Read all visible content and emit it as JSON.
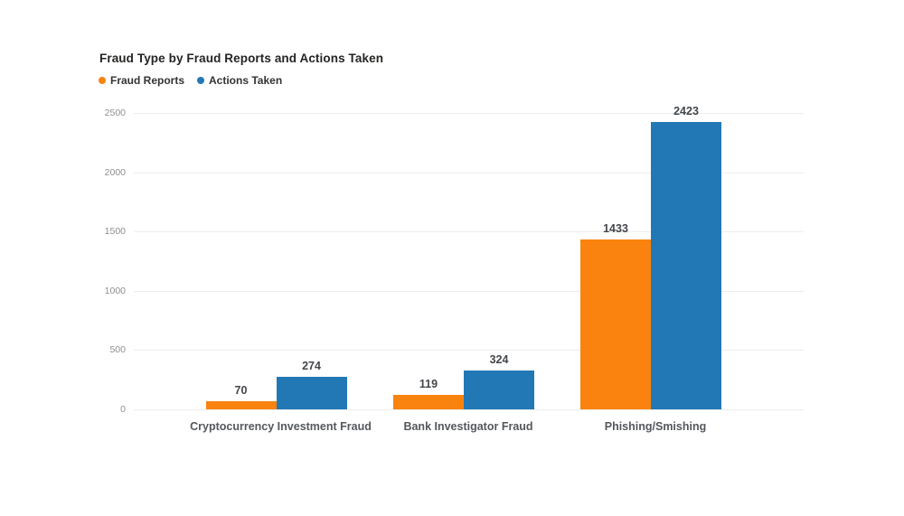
{
  "chart": {
    "title": "Fraud Type by Fraud Reports and Actions Taken"
  },
  "chart_data": {
    "type": "bar",
    "title": "Fraud Type by Fraud Reports and Actions Taken",
    "categories": [
      "Cryptocurrency Investment Fraud",
      "Bank Investigator Fraud",
      "Phishing/Smishing"
    ],
    "series": [
      {
        "name": "Fraud Reports",
        "color": "#f9830e",
        "values": [
          70,
          119,
          1433
        ]
      },
      {
        "name": "Actions Taken",
        "color": "#2278b5",
        "values": [
          274,
          324,
          2423
        ]
      }
    ],
    "xlabel": "",
    "ylabel": "",
    "ylim": [
      0,
      2500
    ],
    "yticks": [
      0,
      500,
      1000,
      1500,
      2000,
      2500
    ],
    "grid": true,
    "legend_position": "top-left",
    "data_labels": true,
    "colors": {
      "title_text": "#252423",
      "legend_text": "#333333",
      "value_label_text": "#43474b",
      "category_label_text": "#54585d",
      "axis_tick_text": "#8f8f8f",
      "gridline": "#ededed",
      "background": "#ffffff"
    }
  }
}
